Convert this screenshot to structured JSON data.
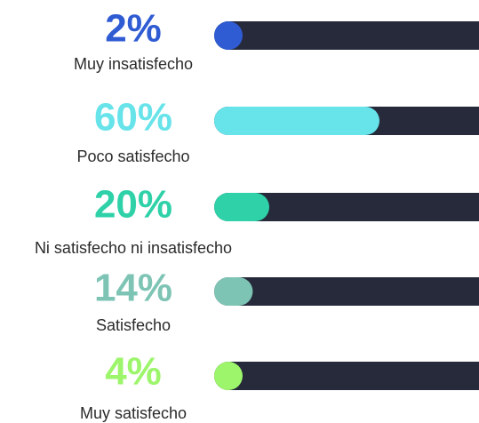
{
  "chart_data": {
    "type": "bar",
    "categories": [
      "Muy insatisfecho",
      "Poco satisfecho",
      "Ni satisfecho ni insatisfecho",
      "Satisfecho",
      "Muy satisfecho"
    ],
    "values": [
      2,
      60,
      20,
      14,
      4
    ],
    "value_labels": [
      "2%",
      "60%",
      "20%",
      "14%",
      "4%"
    ],
    "colors": [
      "#2f5bd3",
      "#67e3ea",
      "#2fd1a8",
      "#7ec4b5",
      "#9cf56b"
    ],
    "track_color": "#262a3b",
    "xlim": [
      0,
      100
    ]
  }
}
